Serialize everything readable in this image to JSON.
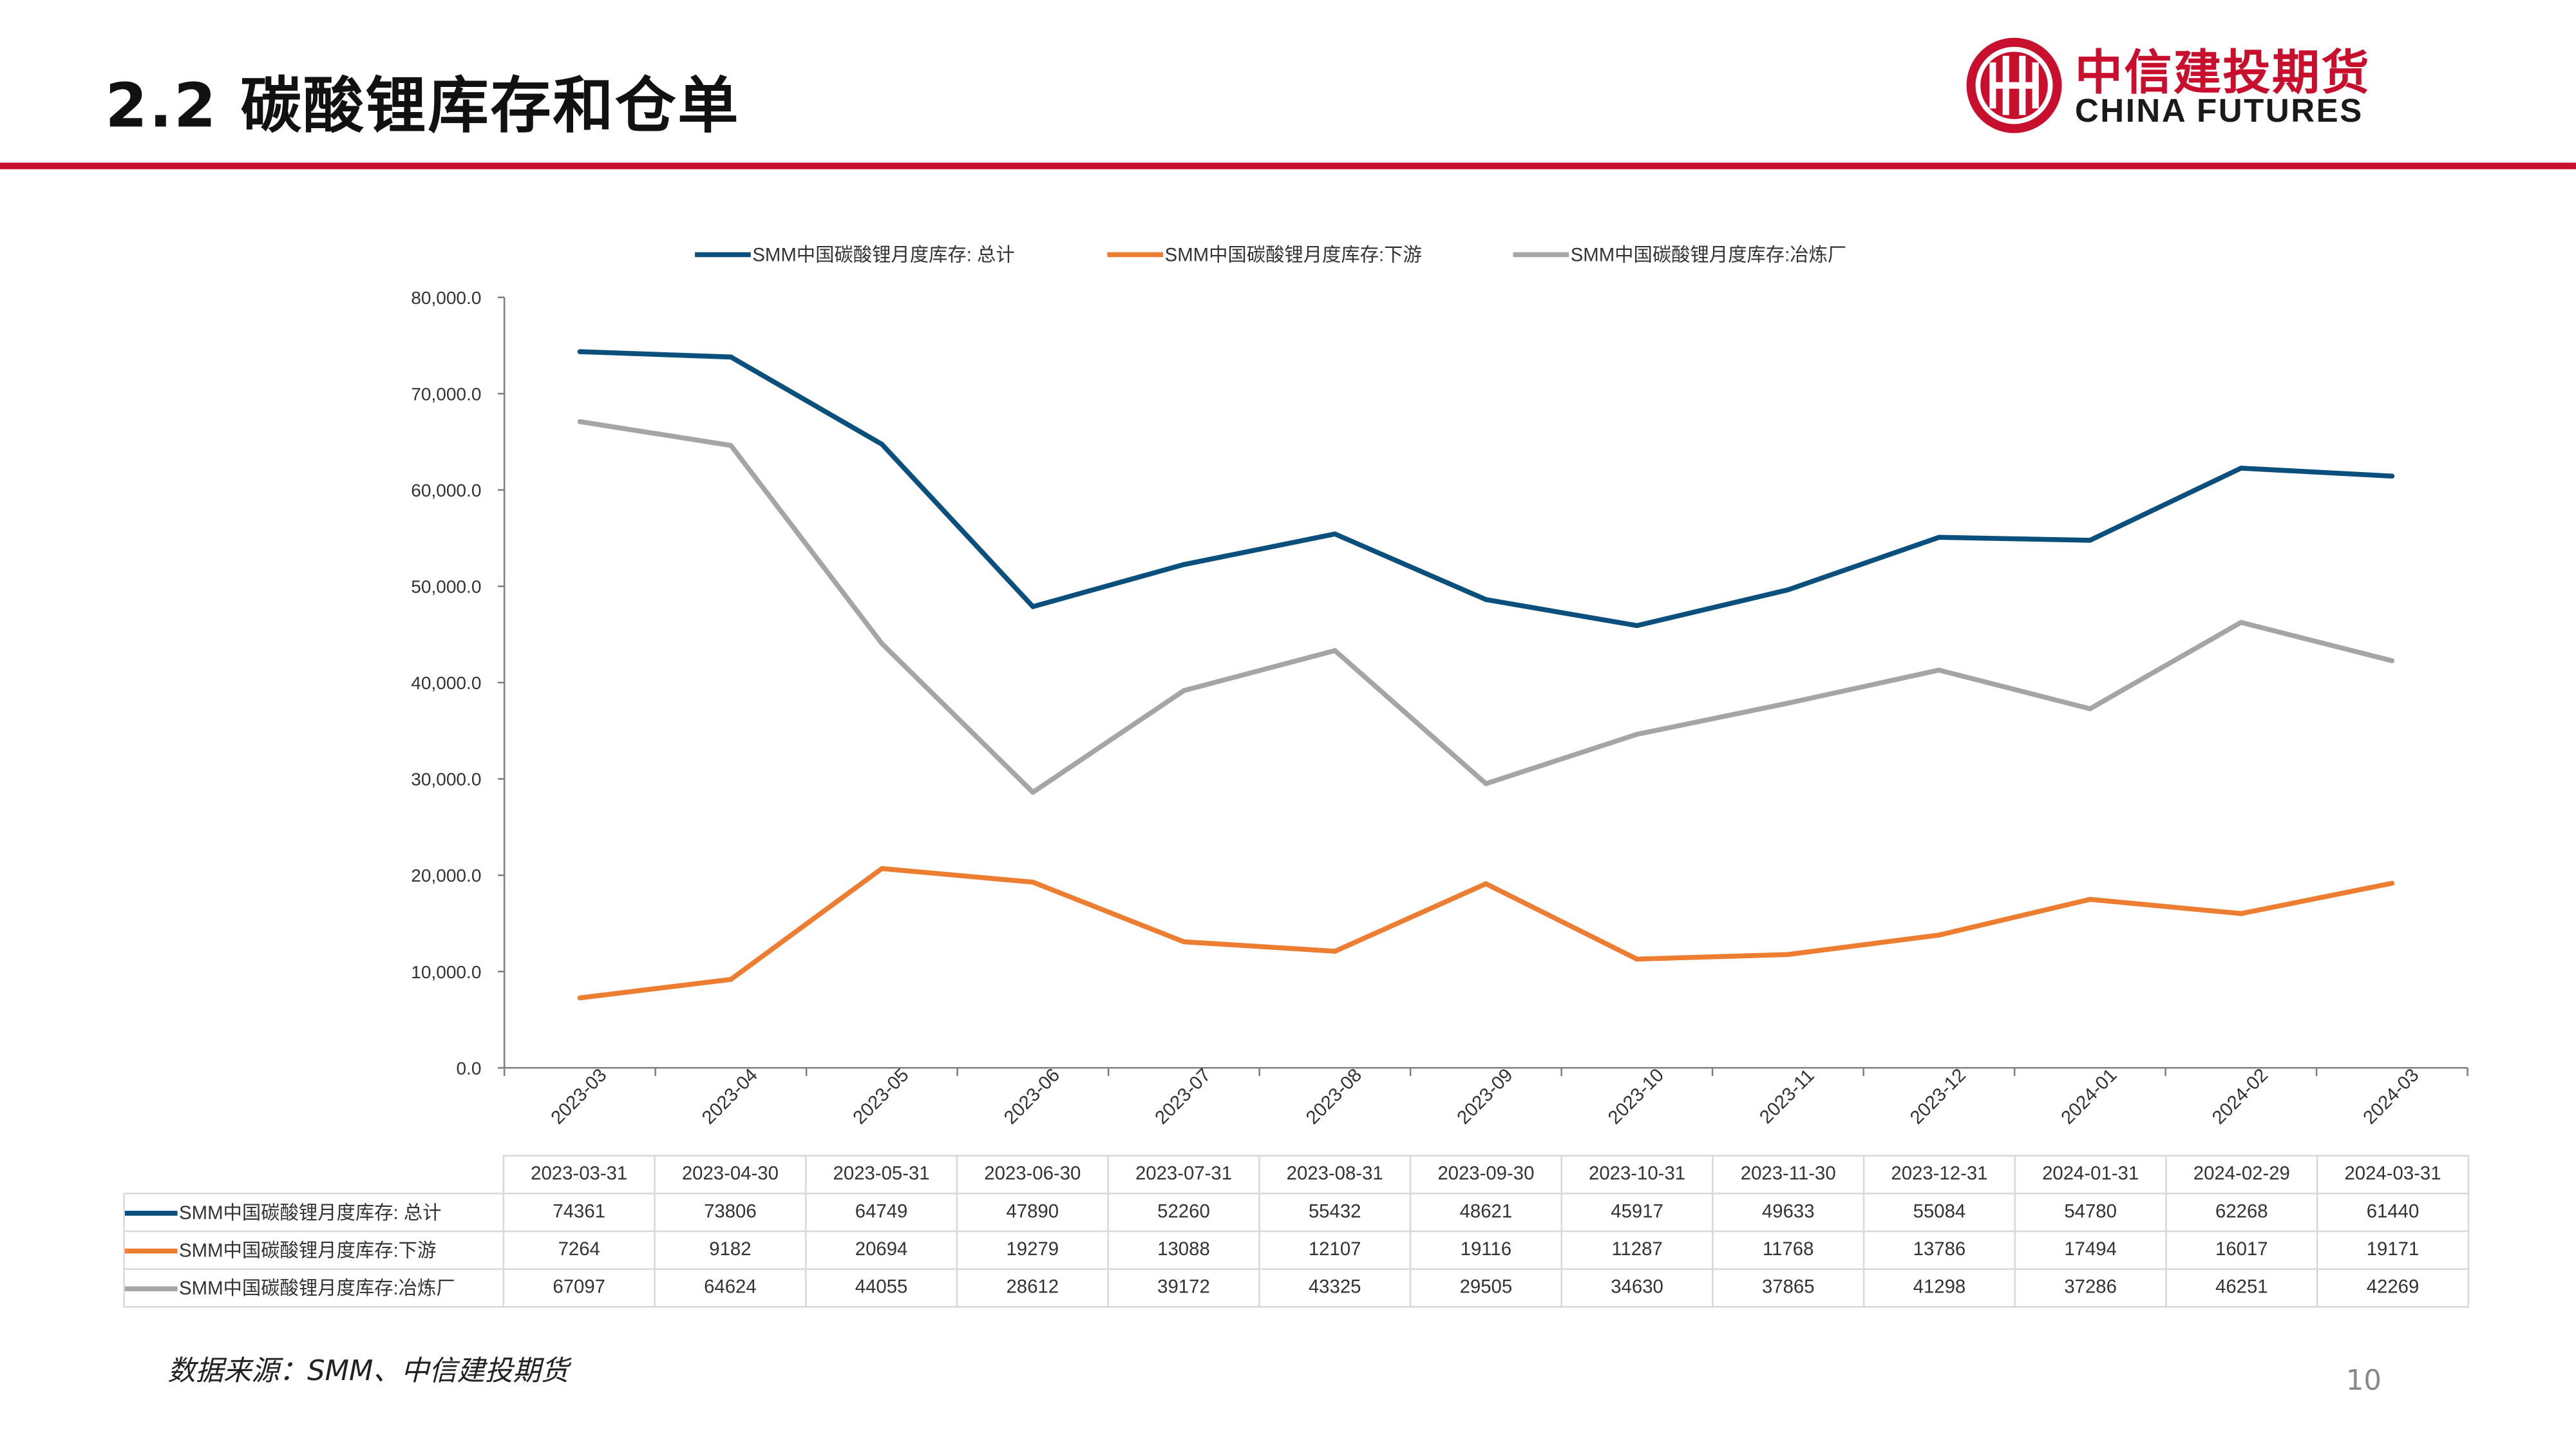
{
  "header": {
    "title": "2.2  碳酸锂库存和仓单"
  },
  "logo": {
    "cn": "中信建投期货",
    "en": "CHINA FUTURES",
    "color": "#c8102e"
  },
  "footer": {
    "source": "数据来源：SMM、中信建投期货",
    "page_number": "10"
  },
  "chart_data": {
    "type": "line",
    "title": "",
    "xlabel": "",
    "ylabel": "",
    "ylim": [
      0,
      80000
    ],
    "yticks": [
      "0.0",
      "10,000.0",
      "20,000.0",
      "30,000.0",
      "40,000.0",
      "50,000.0",
      "60,000.0",
      "70,000.0",
      "80,000.0"
    ],
    "categories": [
      "2023-03",
      "2023-04",
      "2023-05",
      "2023-06",
      "2023-07",
      "2023-08",
      "2023-09",
      "2023-10",
      "2023-11",
      "2023-12",
      "2024-01",
      "2024-02",
      "2024-03"
    ],
    "table_dates": [
      "2023-03-31",
      "2023-04-30",
      "2023-05-31",
      "2023-06-30",
      "2023-07-31",
      "2023-08-31",
      "2023-09-30",
      "2023-10-31",
      "2023-11-30",
      "2023-12-31",
      "2024-01-31",
      "2024-02-29",
      "2024-03-31"
    ],
    "legend_position": "top",
    "grid": false,
    "series": [
      {
        "name": "SMM中国碳酸锂月度库存: 总计",
        "color": "#0b4f7c",
        "values": [
          74361,
          73806,
          64749,
          47890,
          52260,
          55432,
          48621,
          45917,
          49633,
          55084,
          54780,
          62268,
          61440
        ]
      },
      {
        "name": "SMM中国碳酸锂月度库存:下游",
        "color": "#ed7d31",
        "values": [
          7264,
          9182,
          20694,
          19279,
          13088,
          12107,
          19116,
          11287,
          11768,
          13786,
          17494,
          16017,
          19171
        ]
      },
      {
        "name": "SMM中国碳酸锂月度库存:冶炼厂",
        "color": "#a5a5a5",
        "values": [
          67097,
          64624,
          44055,
          28612,
          39172,
          43325,
          29505,
          34630,
          37865,
          41298,
          37286,
          46251,
          42269
        ]
      }
    ]
  }
}
